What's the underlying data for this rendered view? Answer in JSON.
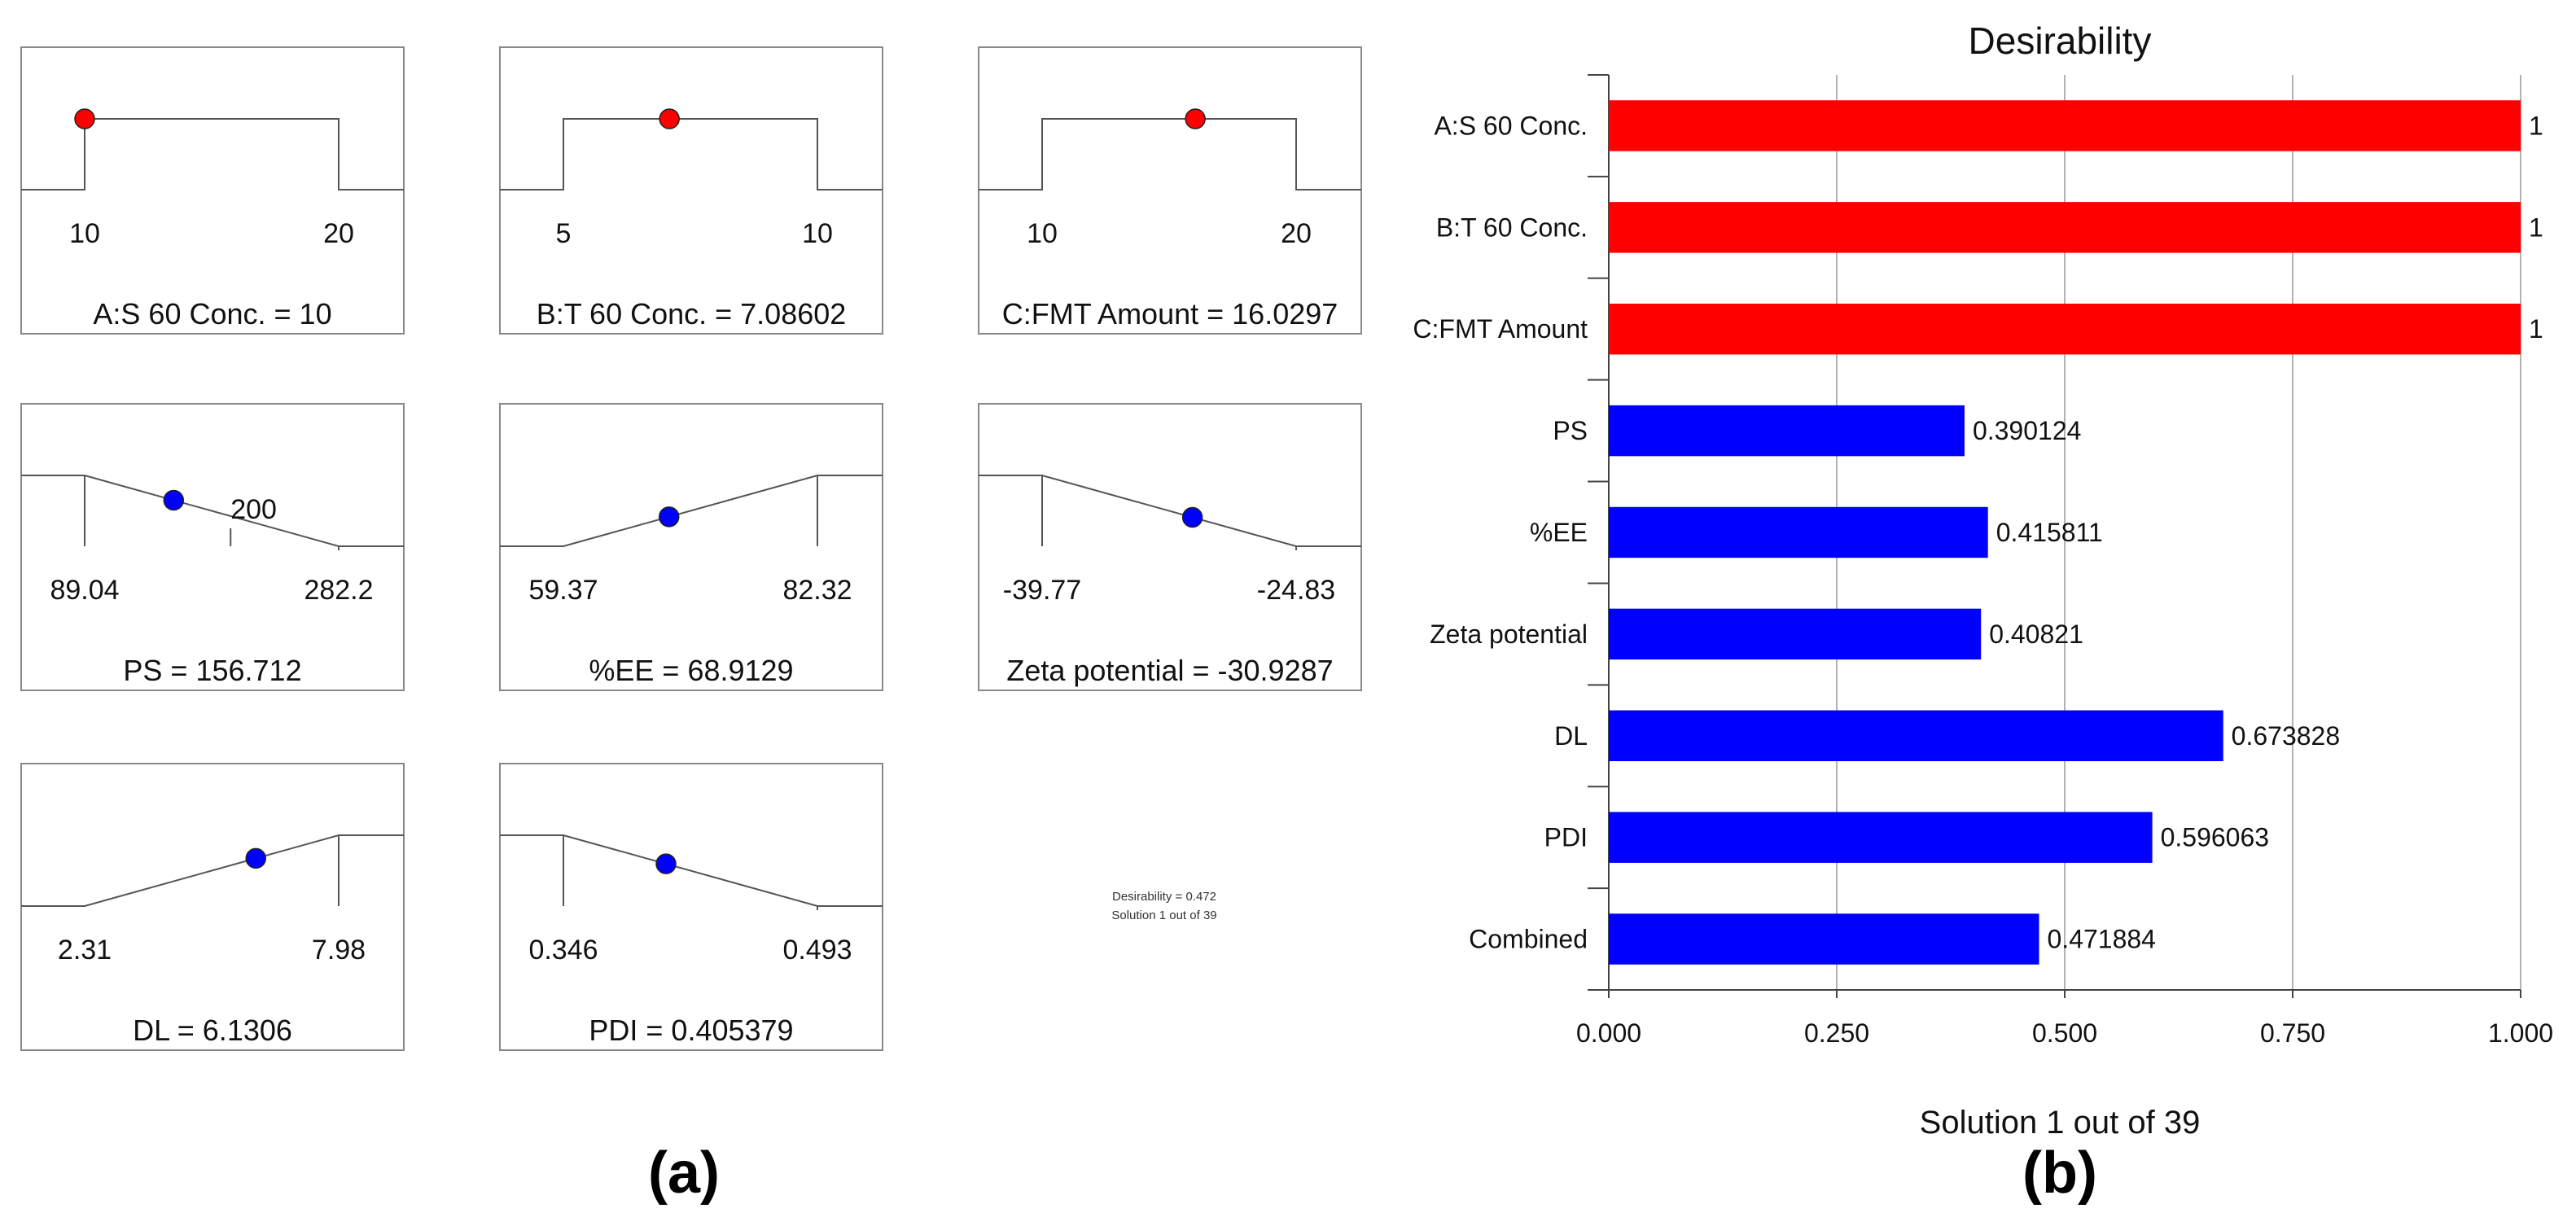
{
  "panel_a": {
    "label": "(a)",
    "plots": [
      {
        "name": "A:S 60 Conc.",
        "caption": "A:S 60 Conc. = 10",
        "ramp": "box",
        "current": 10,
        "goal": "in range",
        "low": 10,
        "high": 20,
        "tick_labels": [
          "10",
          "20"
        ],
        "marker_color": "#ff0000"
      },
      {
        "name": "B:T 60 Conc.",
        "caption": "B:T 60 Conc. = 7.08602",
        "ramp": "box",
        "current": 7.08602,
        "goal": "in range",
        "low": 5,
        "high": 10,
        "tick_labels": [
          "5",
          "10"
        ],
        "marker_color": "#ff0000"
      },
      {
        "name": "C:FMT Amount",
        "caption": "C:FMT Amount = 16.0297",
        "ramp": "box",
        "current": 16.0297,
        "goal": "in range",
        "low": 10,
        "high": 20,
        "tick_labels": [
          "10",
          "20"
        ],
        "marker_color": "#ff0000"
      },
      {
        "name": "PS",
        "caption": "PS = 156.712",
        "ramp": "minimize",
        "current": 156.712,
        "low": 89.04,
        "high": 282.2,
        "target_label": "200",
        "target": 200,
        "tick_labels": [
          "89.04",
          "282.2"
        ],
        "marker_color": "#0000ff"
      },
      {
        "name": "%EE",
        "caption": "%EE = 68.9129",
        "ramp": "maximize",
        "current": 68.9129,
        "low": 59.37,
        "high": 82.32,
        "tick_labels": [
          "59.37",
          "82.32"
        ],
        "marker_color": "#0000ff"
      },
      {
        "name": "Zeta potential",
        "caption": "Zeta potential = -30.9287",
        "ramp": "minimize",
        "current": -30.9287,
        "low": -39.77,
        "high": -24.83,
        "tick_labels": [
          "-39.77",
          "-24.83"
        ],
        "marker_color": "#0000ff"
      },
      {
        "name": "DL",
        "caption": "DL = 6.1306",
        "ramp": "maximize",
        "current": 6.1306,
        "low": 2.31,
        "high": 7.98,
        "tick_labels": [
          "2.31",
          "7.98"
        ],
        "marker_color": "#0000ff"
      },
      {
        "name": "PDI",
        "caption": "PDI = 0.405379",
        "ramp": "minimize",
        "current": 0.405379,
        "low": 0.346,
        "high": 0.493,
        "tick_labels": [
          "0.346",
          "0.493"
        ],
        "marker_color": "#0000ff"
      }
    ],
    "summary": {
      "desirability": "Desirability = 0.472",
      "solution": "Solution 1 out of 39"
    }
  },
  "chart_data": {
    "type": "bar",
    "orientation": "horizontal",
    "title": "Desirability",
    "xlabel": "Solution 1 out of 39",
    "panel_label": "(b)",
    "categories": [
      "A:S 60 Conc.",
      "B:T 60 Conc.",
      "C:FMT Amount",
      "PS",
      "%EE",
      "Zeta potential",
      "DL",
      "PDI",
      "Combined"
    ],
    "values": [
      1,
      1,
      1,
      0.390124,
      0.415811,
      0.40821,
      0.673828,
      0.596063,
      0.471884
    ],
    "value_labels": [
      "1",
      "1",
      "1",
      "0.390124",
      "0.415811",
      "0.40821",
      "0.673828",
      "0.596063",
      "0.471884"
    ],
    "colors": [
      "#ff0000",
      "#ff0000",
      "#ff0000",
      "#0000ff",
      "#0000ff",
      "#0000ff",
      "#0000ff",
      "#0000ff",
      "#0000ff"
    ],
    "xlim": [
      0,
      1
    ],
    "xticks": [
      "0.000",
      "0.250",
      "0.500",
      "0.750",
      "1.000"
    ],
    "grid": true
  }
}
